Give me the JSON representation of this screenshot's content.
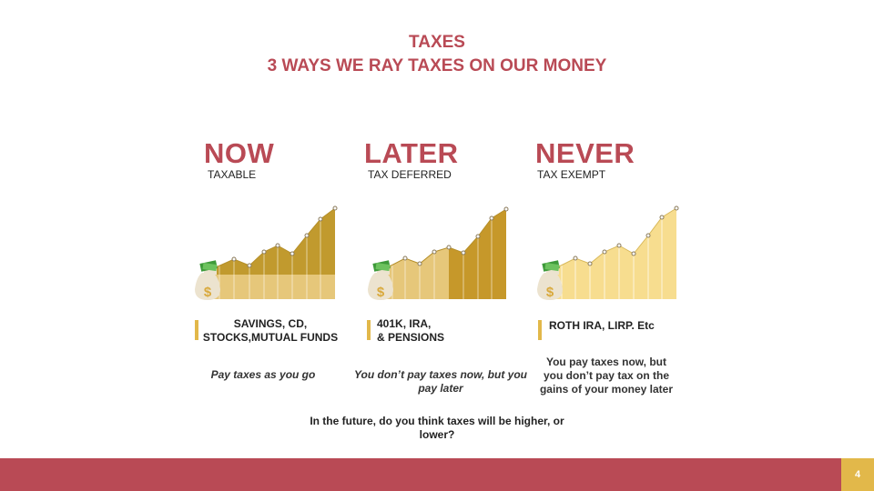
{
  "title": {
    "line1": "TAXES",
    "line2": "3 WAYS WE RAY TAXES ON OUR MONEY"
  },
  "columns": [
    {
      "heading": "NOW",
      "subheading": "TAXABLE",
      "label_lines": [
        "SAVINGS, CD,",
        "STOCKS,MUTUAL FUNDS"
      ],
      "description": "Pay taxes as you go"
    },
    {
      "heading": "LATER",
      "subheading": "TAX DEFERRED",
      "label_lines": [
        "401K, IRA,",
        "& PENSIONS"
      ],
      "description": "You don’t pay taxes now, but you pay later"
    },
    {
      "heading": "NEVER",
      "subheading": "TAX EXEMPT",
      "label_lines": [
        "ROTH IRA, LIRP. Etc"
      ],
      "description": "You pay taxes now, but you don’t pay tax on the gains of your money later"
    }
  ],
  "question": "In the future, do you think taxes will be higher, or lower?",
  "page_number": "4",
  "colors": {
    "title": "#b94a55",
    "accent": "#e2b84a",
    "footer": "#b94a55",
    "chart_now_dark": "#c19a2e",
    "chart_now_light": "#e6c77a",
    "chart_later_light": "#e6c77a",
    "chart_later_dark": "#c6982a",
    "chart_never": "#f7dd8f"
  },
  "icons": [
    "money-bag-icon",
    "cash-stack-icon",
    "dollar-sign-icon"
  ]
}
